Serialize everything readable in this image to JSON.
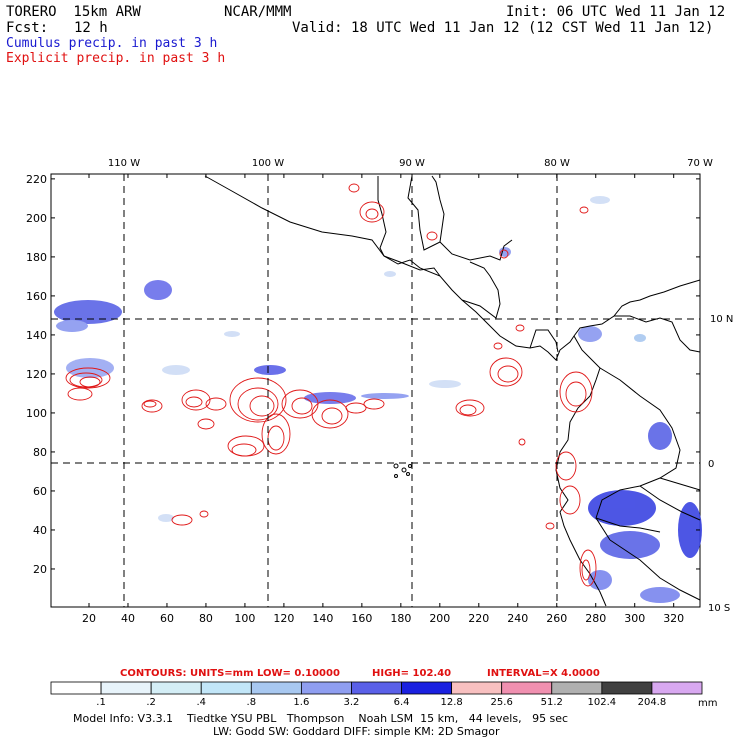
{
  "header": {
    "model": "TORERO  15km ARW",
    "org": "NCAR/MMM",
    "init": "Init: 06 UTC Wed 11 Jan 12",
    "fcst_label": "Fcst:",
    "fcst_value": "12 h",
    "valid": "Valid: 18 UTC Wed 11 Jan 12 (12 CST Wed 11 Jan 12)",
    "cumulus": "Cumulus precip. in past 3 h",
    "explicit": "Explicit precip. in past 3 h"
  },
  "map": {
    "lon_labels": [
      "110 W",
      "100 W",
      "90 W",
      "80 W",
      "70 W"
    ],
    "lat_labels": [
      "10 N",
      "0",
      "10 S"
    ],
    "x_ticks": [
      "20",
      "40",
      "60",
      "80",
      "100",
      "120",
      "140",
      "160",
      "180",
      "200",
      "220",
      "240",
      "260",
      "280",
      "300",
      "320"
    ],
    "y_ticks": [
      "220",
      "200",
      "180",
      "160",
      "140",
      "120",
      "100",
      "80",
      "60",
      "40",
      "20"
    ]
  },
  "contour_info": {
    "contours": "CONTOURS:  UNITS=mm  LOW= 0.10000",
    "high": "HIGH=  102.40",
    "interval": "INTERVAL=X  4.0000"
  },
  "colorbar": {
    "labels": [
      ".1",
      ".2",
      ".4",
      ".8",
      "1.6",
      "3.2",
      "6.4",
      "12.8",
      "25.6",
      "51.2",
      "102.4",
      "204.8"
    ],
    "unit": "mm",
    "colors": [
      "#ffffff",
      "#e8f4fb",
      "#d4eef6",
      "#c2e6f8",
      "#a8c8f0",
      "#8f9ef0",
      "#5a60e8",
      "#1a20e0",
      "#f8c0c0",
      "#f090b0",
      "#b0b0b0",
      "#404040",
      "#d8a8f0"
    ]
  },
  "footer": {
    "line1": "Model Info: V3.3.1    Tiedtke YSU PBL   Thompson    Noah LSM  15 km,   44 levels,   95 sec",
    "line2": "LW: Godd SW: Goddard DIFF: simple KM: 2D Smagor"
  }
}
